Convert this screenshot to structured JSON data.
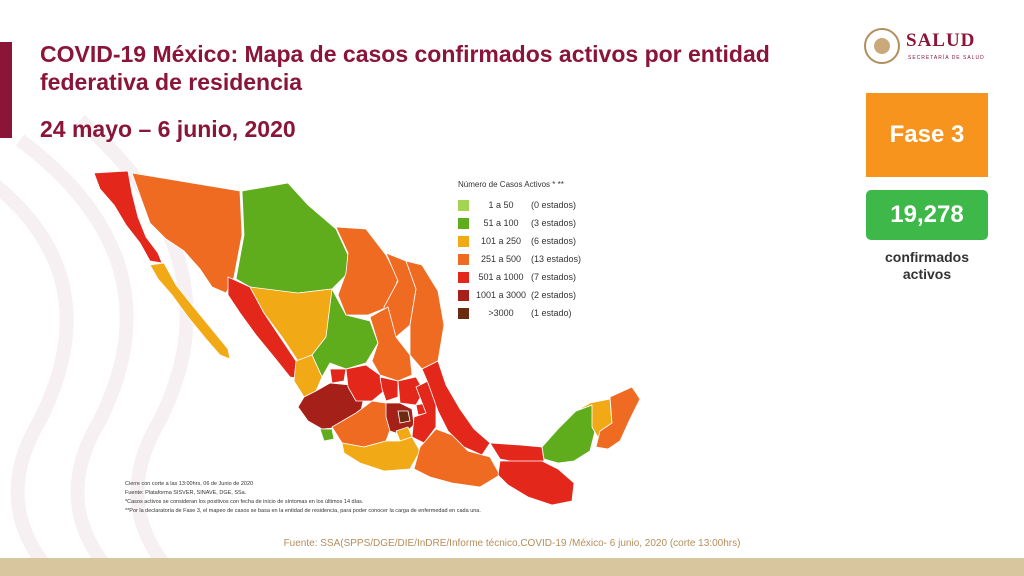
{
  "title": "COVID-19 México: Mapa de casos confirmados activos por entidad federativa de residencia",
  "dates": "24 mayo – 6 junio, 2020",
  "logo": {
    "name": "SALUD",
    "subtitle": "SECRETARÍA DE SALUD"
  },
  "phase": "Fase 3",
  "count": {
    "value": "19,278",
    "label": "confirmados activos"
  },
  "legend": {
    "title": "Número de Casos Activos * **",
    "items": [
      {
        "range": "1 a 50",
        "states": "(0 estados)",
        "color": "#a5d454"
      },
      {
        "range": "51 a 100",
        "states": "(3 estados)",
        "color": "#5fad1d"
      },
      {
        "range": "101 a 250",
        "states": "(6 estados)",
        "color": "#f2a916"
      },
      {
        "range": "251 a 500",
        "states": "(13 estados)",
        "color": "#ee6b21"
      },
      {
        "range": "501 a 1000",
        "states": "(7 estados)",
        "color": "#e3271b"
      },
      {
        "range": "1001 a 3000",
        "states": "(2 estados)",
        "color": "#a52018"
      },
      {
        "range": ">3000",
        "states": "(1 estado)",
        "color": "#6b2a12"
      }
    ]
  },
  "notes": [
    "Cierre con corte a las 13:00hrs, 06 de Junio de 2020",
    "Fuente: Plataforma SISVER, SINAVE, DGE, SSa.",
    "*Casos activos se consideran los positivos con fecha de inicio de síntomas en los últimos 14 días.",
    "**Por la declaratoria de Fase 3, el mapeo de casos se basa en la entidad de residencia, para poder conocer la carga de enfermedad en cada una."
  ],
  "source": "Fuente: SSA(SPPS/DGE/DIE/InDRE/Informe técnico.COVID-19 /México- 6  junio, 2020 (corte 13:00hrs)"
}
